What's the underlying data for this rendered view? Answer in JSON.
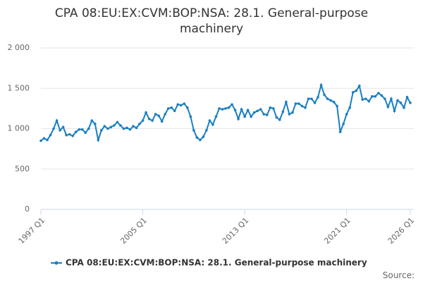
{
  "chart_data": {
    "type": "line",
    "title": "CPA 08:EU:EX:CVM:BOP:NSA: 28.1. General-purpose machinery",
    "source": "Source:",
    "categories": [
      "1997 Q1",
      null,
      null,
      null,
      null,
      null,
      null,
      null,
      null,
      null,
      null,
      null,
      null,
      null,
      null,
      null,
      null,
      null,
      null,
      null,
      null,
      null,
      null,
      null,
      null,
      null,
      null,
      null,
      null,
      null,
      null,
      null,
      "2005 Q1",
      null,
      null,
      null,
      null,
      null,
      null,
      null,
      null,
      null,
      null,
      null,
      null,
      null,
      null,
      null,
      null,
      null,
      null,
      null,
      null,
      null,
      null,
      null,
      null,
      null,
      null,
      null,
      null,
      null,
      null,
      null,
      "2013 Q1",
      null,
      null,
      null,
      null,
      null,
      null,
      null,
      null,
      null,
      null,
      null,
      null,
      null,
      null,
      null,
      null,
      null,
      null,
      null,
      null,
      null,
      null,
      null,
      null,
      null,
      null,
      null,
      null,
      null,
      null,
      null,
      "2021 Q1",
      null,
      null,
      null,
      null,
      null,
      null,
      null,
      null,
      null,
      null,
      null,
      null,
      null,
      null,
      null,
      null,
      null,
      null,
      null,
      "2026 Q1"
    ],
    "series": [
      {
        "name": "CPA 08:EU:EX:CVM:BOP:NSA: 28.1. General-purpose machinery",
        "color": "#1a7fc1",
        "values": [
          850,
          880,
          860,
          920,
          1000,
          1100,
          980,
          1020,
          920,
          930,
          910,
          960,
          990,
          990,
          950,
          1000,
          1100,
          1060,
          860,
          980,
          1030,
          1000,
          1020,
          1040,
          1080,
          1040,
          1000,
          1010,
          990,
          1030,
          1010,
          1060,
          1100,
          1200,
          1120,
          1100,
          1180,
          1160,
          1090,
          1180,
          1250,
          1260,
          1220,
          1300,
          1290,
          1310,
          1260,
          1150,
          980,
          890,
          860,
          900,
          980,
          1100,
          1050,
          1150,
          1250,
          1240,
          1250,
          1260,
          1300,
          1230,
          1120,
          1240,
          1150,
          1230,
          1150,
          1200,
          1220,
          1240,
          1180,
          1170,
          1260,
          1250,
          1140,
          1110,
          1210,
          1330,
          1180,
          1200,
          1310,
          1310,
          1280,
          1260,
          1370,
          1370,
          1320,
          1390,
          1540,
          1420,
          1370,
          1350,
          1330,
          1280,
          960,
          1060,
          1180,
          1260,
          1450,
          1470,
          1530,
          1360,
          1370,
          1340,
          1400,
          1400,
          1440,
          1410,
          1370,
          1270,
          1370,
          1220,
          1350,
          1320,
          1260,
          1390,
          1320
        ]
      }
    ],
    "ylim": [
      0,
      2000
    ],
    "yticks": [
      0,
      500,
      {
        "value": 1000,
        "label": "1 000"
      },
      {
        "value": 1500,
        "label": "1 500"
      },
      {
        "value": 2000,
        "label": "2 000"
      }
    ],
    "grid": true
  }
}
